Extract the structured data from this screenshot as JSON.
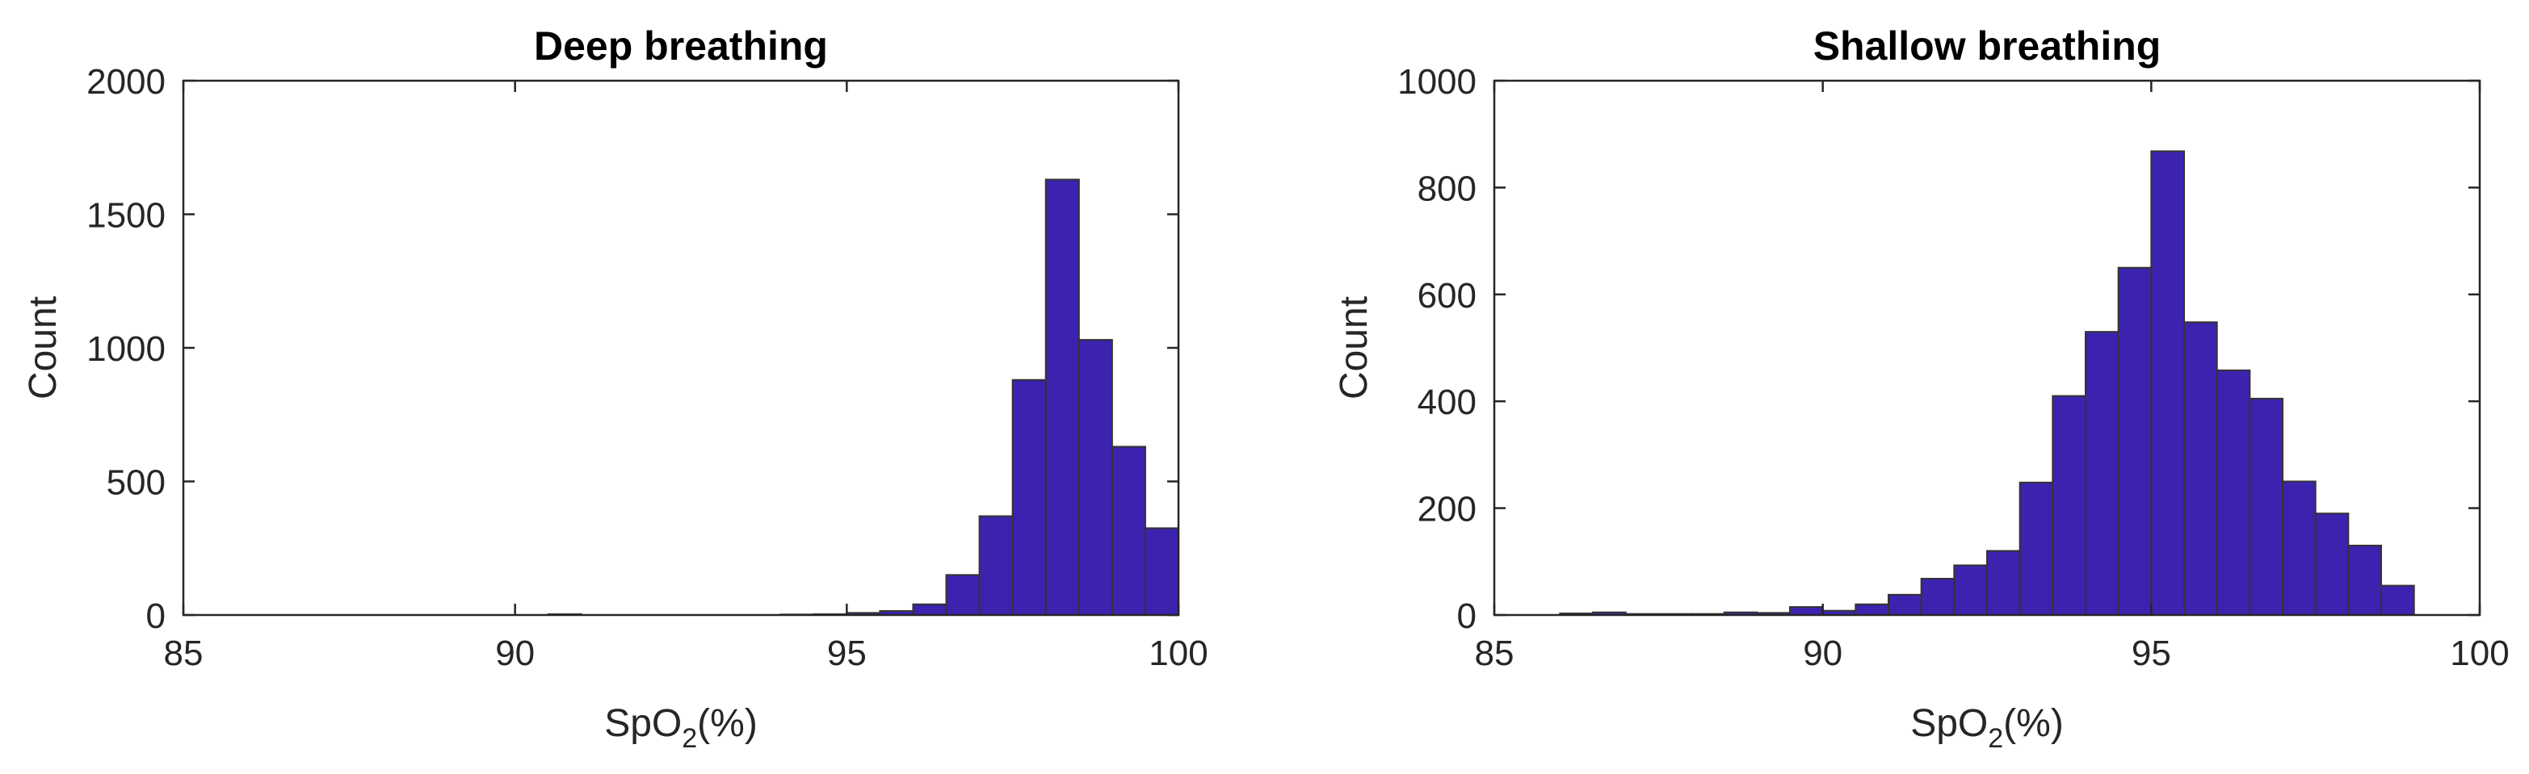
{
  "chart_data": [
    {
      "type": "bar",
      "title": "Deep breathing",
      "xlabel": {
        "base": "SpO",
        "sub": "2",
        "suffix": "(%)"
      },
      "ylabel": "Count",
      "xlim": [
        85,
        100
      ],
      "ylim": [
        0,
        2000
      ],
      "xticks": [
        "85",
        "90",
        "95",
        "100"
      ],
      "yticks": [
        "0",
        "500",
        "1000",
        "1500",
        "2000"
      ],
      "bin_width": 0.5,
      "bins": [
        {
          "x": 90.75,
          "value": 3
        },
        {
          "x": 94.25,
          "value": 2
        },
        {
          "x": 94.75,
          "value": 3
        },
        {
          "x": 95.25,
          "value": 8
        },
        {
          "x": 95.75,
          "value": 15
        },
        {
          "x": 96.25,
          "value": 40
        },
        {
          "x": 96.75,
          "value": 150
        },
        {
          "x": 97.25,
          "value": 370
        },
        {
          "x": 97.75,
          "value": 880
        },
        {
          "x": 98.25,
          "value": 1630
        },
        {
          "x": 98.75,
          "value": 1030
        },
        {
          "x": 99.25,
          "value": 630
        },
        {
          "x": 99.75,
          "value": 325
        },
        {
          "x": 100.25,
          "value": 20
        }
      ],
      "bar_color": "#3d22b0",
      "edge_color": "#333333"
    },
    {
      "type": "bar",
      "title": "Shallow breathing",
      "xlabel": {
        "base": "SpO",
        "sub": "2",
        "suffix": "(%)"
      },
      "ylabel": "Count",
      "xlim": [
        85,
        100
      ],
      "ylim": [
        0,
        1000
      ],
      "xticks": [
        "85",
        "90",
        "95",
        "100"
      ],
      "yticks": [
        "0",
        "200",
        "400",
        "600",
        "800",
        "1000"
      ],
      "bin_width": 0.5,
      "bins": [
        {
          "x": 86.25,
          "value": 3
        },
        {
          "x": 86.75,
          "value": 5
        },
        {
          "x": 87.25,
          "value": 2
        },
        {
          "x": 87.75,
          "value": 2
        },
        {
          "x": 88.25,
          "value": 2
        },
        {
          "x": 88.75,
          "value": 5
        },
        {
          "x": 89.25,
          "value": 4
        },
        {
          "x": 89.75,
          "value": 15
        },
        {
          "x": 90.25,
          "value": 8
        },
        {
          "x": 90.75,
          "value": 20
        },
        {
          "x": 91.25,
          "value": 38
        },
        {
          "x": 91.75,
          "value": 68
        },
        {
          "x": 92.25,
          "value": 93
        },
        {
          "x": 92.75,
          "value": 120
        },
        {
          "x": 93.25,
          "value": 248
        },
        {
          "x": 93.75,
          "value": 410
        },
        {
          "x": 94.25,
          "value": 530
        },
        {
          "x": 94.75,
          "value": 650
        },
        {
          "x": 95.25,
          "value": 868
        },
        {
          "x": 95.75,
          "value": 548
        },
        {
          "x": 96.25,
          "value": 458
        },
        {
          "x": 96.75,
          "value": 405
        },
        {
          "x": 97.25,
          "value": 250
        },
        {
          "x": 97.75,
          "value": 190
        },
        {
          "x": 98.25,
          "value": 130
        },
        {
          "x": 98.75,
          "value": 55
        }
      ],
      "bar_color": "#3d22b0",
      "edge_color": "#333333"
    }
  ]
}
